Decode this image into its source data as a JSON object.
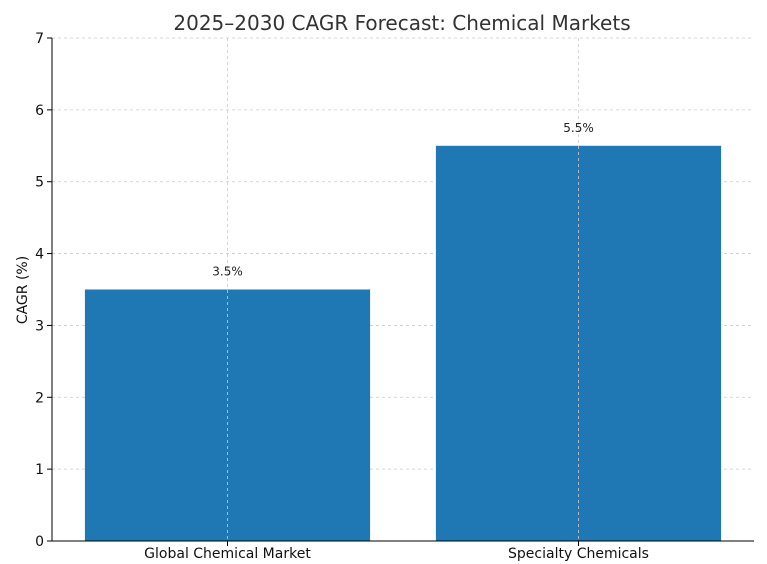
{
  "chart_data": {
    "type": "bar",
    "title": "2025–2030 CAGR Forecast: Chemical Markets",
    "xlabel": "",
    "ylabel": "CAGR (%)",
    "categories": [
      "Global Chemical Market",
      "Specialty Chemicals"
    ],
    "values": [
      3.5,
      5.5
    ],
    "data_labels": [
      "3.5%",
      "5.5%"
    ],
    "ylim": [
      0,
      7
    ],
    "yticks": [
      0,
      1,
      2,
      3,
      4,
      5,
      6,
      7
    ],
    "grid": true,
    "legend": "none",
    "colors": {
      "bar": "#1f77b4",
      "grid": "#cccccc",
      "axis": "#000000"
    }
  }
}
